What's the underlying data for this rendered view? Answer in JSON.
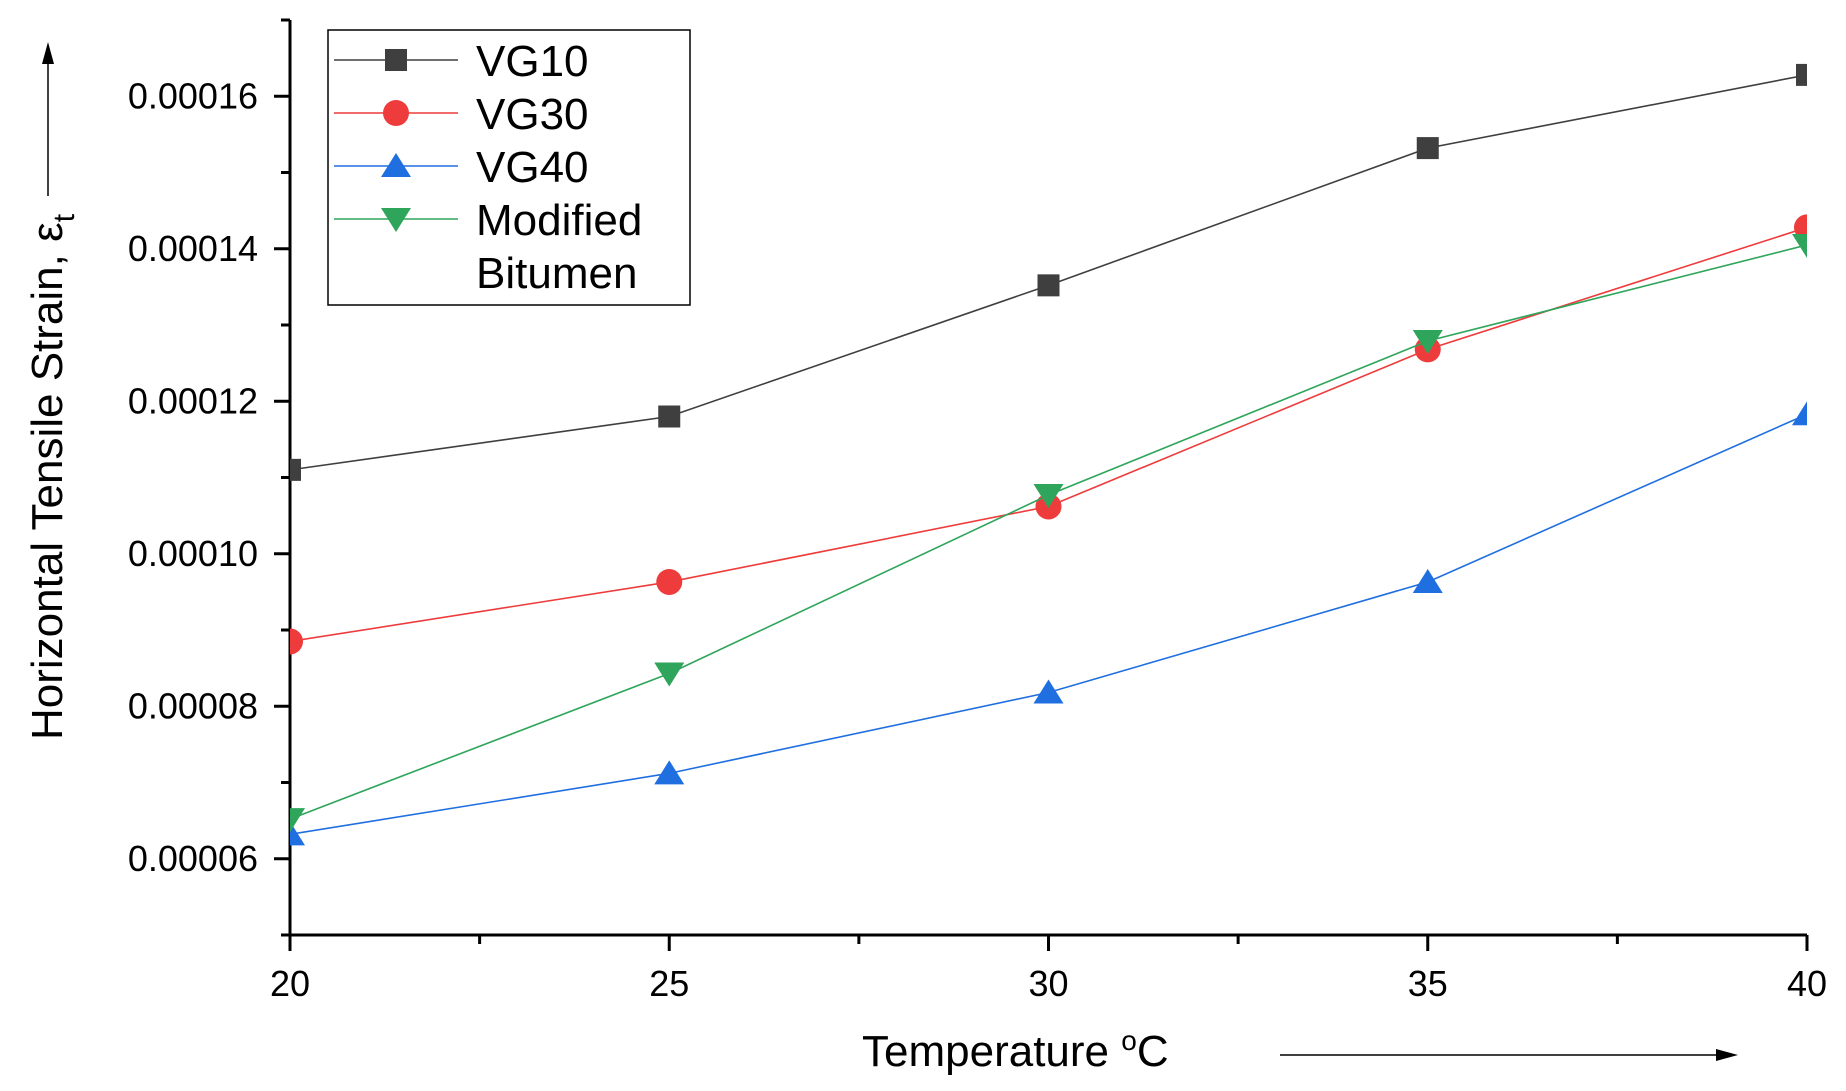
{
  "chart_data": {
    "type": "line",
    "title": "",
    "xlabel": "Temperature °C",
    "ylabel": "Horizontal Tensile Strain, ε",
    "ylabel_subscript": "t",
    "xlim": [
      20,
      40
    ],
    "ylim": [
      5e-05,
      0.00017
    ],
    "x_ticks": [
      20,
      25,
      30,
      35,
      40
    ],
    "x_tick_labels": [
      "20",
      "25",
      "30",
      "35",
      "40"
    ],
    "y_ticks": [
      6e-05,
      8e-05,
      0.0001,
      0.00012,
      0.00014,
      0.00016
    ],
    "y_tick_labels": [
      "0.00006",
      "0.00008",
      "0.00010",
      "0.00012",
      "0.00014",
      "0.00016"
    ],
    "grid": false,
    "legend_position": "top-left",
    "x": [
      20,
      25,
      30,
      35,
      40
    ],
    "series": [
      {
        "name": "VG10",
        "marker": "square",
        "color": "#3f3f3f",
        "values": [
          0.000111,
          0.000118,
          0.0001352,
          0.0001532,
          0.0001628
        ]
      },
      {
        "name": "VG30",
        "marker": "circle",
        "color": "#ee3b3b",
        "values": [
          8.85e-05,
          9.63e-05,
          0.0001062,
          0.0001268,
          0.0001428
        ]
      },
      {
        "name": "VG40",
        "marker": "triangle-up",
        "color": "#1f6fe0",
        "values": [
          6.32e-05,
          7.12e-05,
          8.18e-05,
          9.63e-05,
          0.0001183
        ]
      },
      {
        "name": "Modified Bitumen",
        "label_lines": [
          "Modified",
          "Bitumen"
        ],
        "marker": "triangle-down",
        "color": "#2ea55a",
        "values": [
          6.52e-05,
          8.43e-05,
          0.0001077,
          0.0001279,
          0.0001405
        ]
      }
    ]
  }
}
